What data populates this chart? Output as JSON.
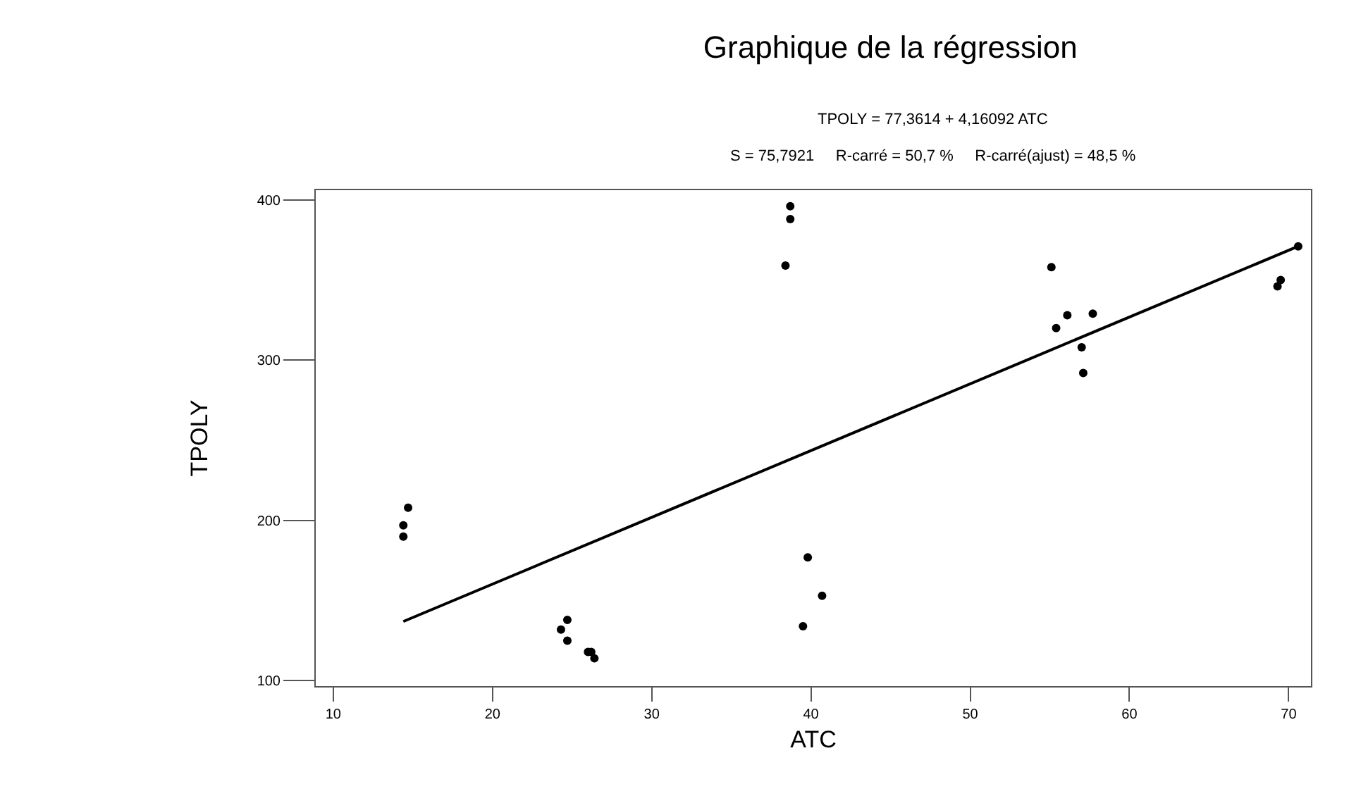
{
  "chart_data": {
    "type": "scatter",
    "title": "Graphique de la régression",
    "annotations": [
      "TPOLY = 77,3614 + 4,16092 ATC",
      "S = 75,7921     R-carré = 50,7 %     R-carré(ajust) = 48,5 %"
    ],
    "xlabel": "ATC",
    "ylabel": "TPOLY",
    "xlim": [
      8.9,
      71.4
    ],
    "xticks": [
      10,
      20,
      30,
      40,
      50,
      60,
      70
    ],
    "ylim": [
      96.7,
      406
    ],
    "yticks": [
      100,
      200,
      300,
      400
    ],
    "grid": false,
    "marker": "circle",
    "series": [
      {
        "color": "#000000",
        "x": [
          14.7,
          14.4,
          14.4,
          24.7,
          24.3,
          24.7,
          26.0,
          26.2,
          26.4,
          38.4,
          38.7,
          38.7,
          39.8,
          40.7,
          39.5,
          55.1,
          55.4,
          56.1,
          57.7,
          57.0,
          57.1,
          69.5,
          69.3,
          70.6
        ],
        "values": [
          208,
          197,
          190,
          138,
          132,
          125,
          118,
          118,
          114,
          359,
          396,
          388,
          177,
          153,
          134,
          358,
          320,
          328,
          329,
          308,
          292,
          350,
          346,
          371
        ]
      },
      {
        "type": "line",
        "color": "#000000",
        "marker": "none",
        "line_style": "solid",
        "x": [
          14.4,
          70.6
        ],
        "values": [
          137,
          371
        ]
      }
    ]
  }
}
